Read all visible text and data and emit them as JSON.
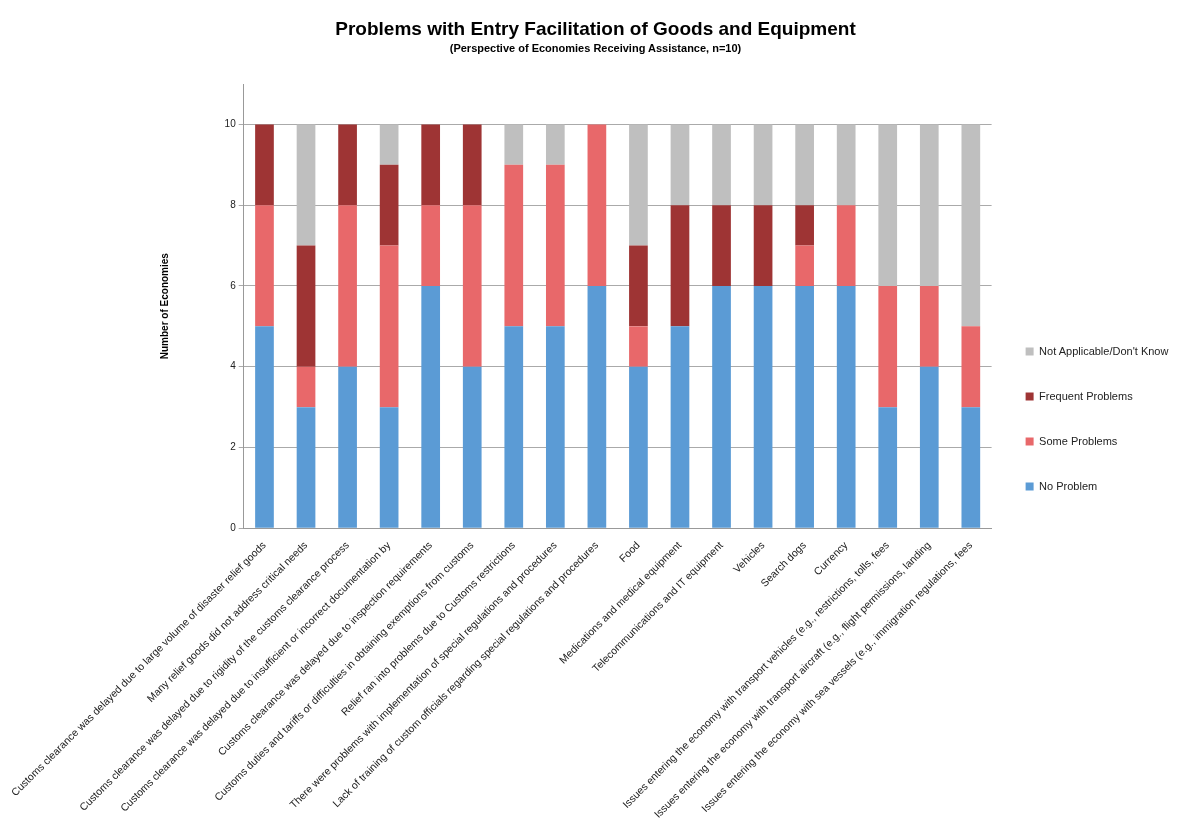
{
  "chart_data": {
    "type": "bar",
    "stacked": true,
    "title": "Problems with Entry Facilitation of Goods and Equipment",
    "subtitle": "(Perspective of Economies Receiving Assistance, n=10)",
    "ylabel": "Number of Economies",
    "categories": [
      "Customs clearance was delayed due to large volume of disaster relief goods",
      "Many relief goods did not address critical needs",
      "Customs clearance was delayed due to rigidity of the customs clearance process",
      "Customs clearance was delayed due to insufficient or incorrect documentation by",
      "Customs clearance was delayed due to inspection requirements",
      "Customs duties and tariffs or difficulties in obtaining exemptions from customs",
      "Relief ran into problems due to Customs restrictions",
      "There were problems with implementation of special regulations and procedures",
      "Lack of training of custom officials regarding special regulations and procedures",
      "Food",
      "Medications and medical equipment",
      "Telecommunications and IT equipment",
      "Vehicles",
      "Search dogs",
      "Currency",
      "Issues entering the economy with transport vehicles (e.g., restrictions, tolls, fees",
      "Issues entering the economy with transport aircraft (e.g., flight permissions, landing",
      "Issues entering the economy with sea vessels (e.g., immigration regulations, fees"
    ],
    "series": [
      {
        "name": "No Problem",
        "color": "#5b9bd5",
        "values": [
          5,
          3,
          4,
          3,
          6,
          4,
          5,
          5,
          6,
          4,
          5,
          6,
          6,
          6,
          6,
          3,
          4,
          3
        ]
      },
      {
        "name": "Some Problems",
        "color": "#e8686a",
        "values": [
          3,
          1,
          4,
          4,
          2,
          4,
          4,
          4,
          4,
          1,
          0,
          0,
          0,
          1,
          2,
          3,
          2,
          2
        ]
      },
      {
        "name": "Frequent Problems",
        "color": "#9e3434",
        "values": [
          2,
          3,
          2,
          2,
          2,
          2,
          0,
          0,
          0,
          2,
          3,
          2,
          2,
          1,
          0,
          0,
          0,
          0
        ]
      },
      {
        "name": "Not Applicable/Don't Know",
        "color": "#bfbfbf",
        "values": [
          0,
          3,
          0,
          1,
          0,
          0,
          1,
          1,
          0,
          3,
          2,
          2,
          2,
          2,
          2,
          4,
          4,
          5
        ]
      }
    ],
    "ylim": [
      0,
      11
    ],
    "yticks": [
      0,
      2,
      4,
      6,
      8,
      10
    ],
    "grid": "y",
    "legend": "right"
  }
}
